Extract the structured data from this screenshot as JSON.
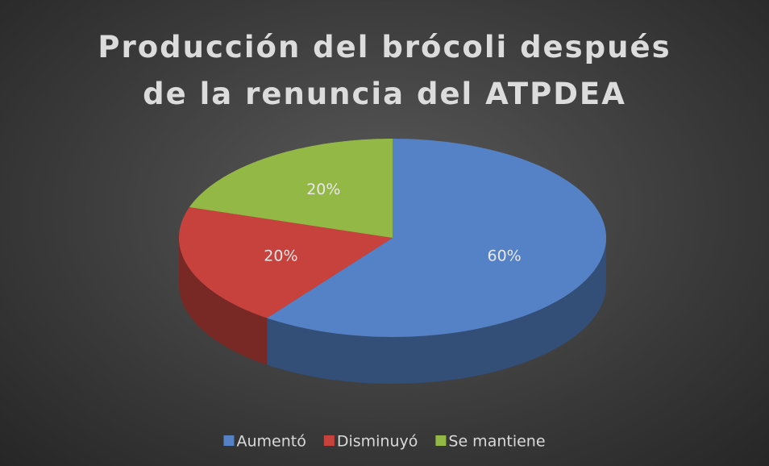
{
  "chart_data": {
    "type": "pie",
    "title": "Producción del brócoli después de la renuncia del ATPDEA",
    "categories": [
      "Aumentó",
      "Disminuyó",
      "Se mantiene"
    ],
    "values": [
      60,
      20,
      20
    ],
    "value_labels": [
      "60%",
      "20%",
      "20%"
    ],
    "colors": [
      "#5582c6",
      "#c8423d",
      "#94b845"
    ],
    "legend": "bottom"
  }
}
